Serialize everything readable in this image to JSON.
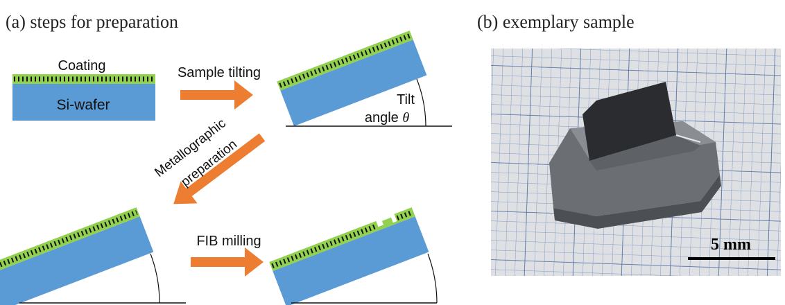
{
  "panel_a": {
    "title": "(a) steps for preparation",
    "coating": "Coating",
    "si_wafer": "Si-wafer",
    "sample_tilting": "Sample tilting",
    "tilt": "Tilt",
    "angle": "angle",
    "theta": "θ",
    "metallographic": "Metallographic",
    "preparation": "preparation",
    "fib_milling": "FIB milling"
  },
  "panel_b": {
    "title": "(b) exemplary sample",
    "scale_bar": "5 mm"
  }
}
